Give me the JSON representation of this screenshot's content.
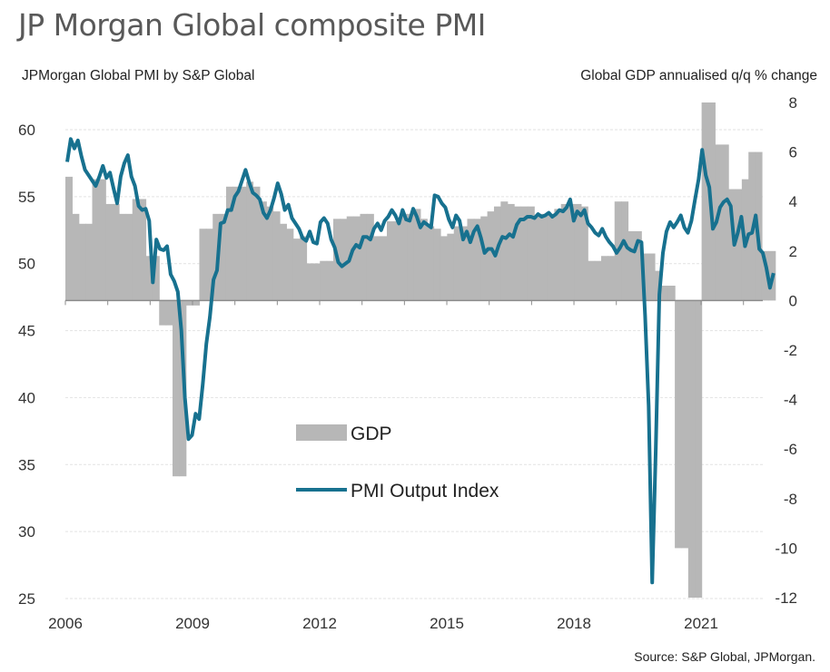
{
  "chart_data": {
    "type": "bar+line",
    "title": "JP Morgan Global composite PMI",
    "left_axis_label": "JPMorgan Global PMI by S&P Global",
    "right_axis_label": "Global GDP annualised q/q % change",
    "source": "Source: S&P Global, JPMorgan.",
    "left_ylim": [
      25,
      60
    ],
    "left_ticks": [
      "60",
      "55",
      "50",
      "45",
      "40",
      "35",
      "30",
      "25"
    ],
    "left_tick_values": [
      60,
      55,
      50,
      45,
      40,
      35,
      30,
      25
    ],
    "right_ylim": [
      -12,
      8
    ],
    "right_ticks": [
      "8",
      "6",
      "4",
      "2",
      "0",
      "-2",
      "-4",
      "-6",
      "-8",
      "-10",
      "-12"
    ],
    "right_tick_values": [
      8,
      6,
      4,
      2,
      0,
      -2,
      -4,
      -6,
      -8,
      -10,
      -12
    ],
    "x_ticks": [
      "2006",
      "2009",
      "2012",
      "2015",
      "2018",
      "2021"
    ],
    "x_tick_values": [
      2006,
      2009,
      2012,
      2015,
      2018,
      2021
    ],
    "xlim": [
      2006,
      2022.75
    ],
    "grid": true,
    "legend": [
      {
        "name": "GDP",
        "type": "bar",
        "color": "#b7b7b7"
      },
      {
        "name": "PMI Output Index",
        "type": "line",
        "color": "#17718f"
      }
    ],
    "legend_position": "center",
    "series": [
      {
        "name": "GDP",
        "axis": "right",
        "type": "bar",
        "frequency": "quarterly",
        "start": 2006.0,
        "values": [
          5.0,
          3.5,
          3.1,
          3.1,
          4.9,
          4.9,
          3.9,
          3.9,
          3.5,
          3.5,
          4.1,
          4.1,
          1.8,
          1.8,
          -1.0,
          -1.0,
          -7.1,
          -7.1,
          -0.2,
          -0.2,
          2.9,
          2.9,
          3.5,
          3.5,
          4.6,
          4.6,
          4.6,
          4.8,
          4.6,
          4.0,
          3.8,
          3.6,
          3.1,
          2.9,
          2.5,
          2.6,
          1.5,
          1.5,
          1.6,
          1.6,
          3.3,
          3.3,
          3.4,
          3.4,
          3.5,
          3.5,
          2.6,
          2.6,
          3.2,
          3.2,
          3.5,
          3.5,
          3.7,
          3.3,
          3.0,
          2.9,
          2.6,
          2.7,
          3.0,
          3.0,
          3.3,
          3.3,
          3.4,
          3.6,
          3.8,
          4.0,
          3.9,
          3.8,
          3.8,
          3.8,
          3.4,
          3.5,
          3.5,
          3.7,
          3.9,
          3.9,
          3.9,
          3.8,
          1.6,
          1.6,
          1.8,
          1.8,
          4.0,
          4.0,
          2.8,
          2.8,
          1.9,
          1.9,
          1.2,
          0.6,
          0.6,
          -10.0,
          -10.0,
          -12.0,
          -12.0,
          8.0,
          8.0,
          6.3,
          6.3,
          4.5,
          4.5,
          4.9,
          6.0,
          6.0,
          2.0,
          2.0
        ],
        "note": "values are stepwise quarterly approximations"
      },
      {
        "name": "PMI Output Index",
        "axis": "left",
        "type": "line",
        "frequency": "monthly",
        "start": 2006.0,
        "values": [
          57.6,
          59.3,
          58.6,
          59.2,
          58.0,
          57.0,
          56.6,
          56.2,
          55.8,
          56.5,
          57.3,
          56.4,
          56.8,
          55.6,
          54.5,
          56.5,
          57.5,
          58.1,
          56.5,
          55.8,
          54.3,
          54.0,
          54.1,
          53.2,
          48.6,
          51.8,
          51.1,
          51.0,
          51.3,
          49.2,
          48.7,
          47.9,
          45.0,
          40.0,
          36.9,
          37.2,
          38.8,
          38.4,
          41.0,
          44.0,
          46.0,
          48.8,
          49.5,
          53.0,
          53.1,
          54.0,
          54.0,
          55.0,
          55.4,
          56.2,
          57.0,
          56.1,
          55.3,
          55.1,
          54.8,
          53.8,
          53.4,
          54.0,
          54.9,
          56.0,
          55.2,
          54.0,
          54.4,
          53.4,
          53.0,
          52.6,
          51.9,
          51.7,
          52.4,
          51.6,
          51.5,
          53.1,
          53.4,
          53.0,
          51.8,
          51.2,
          50.1,
          49.8,
          50.0,
          50.2,
          51.0,
          51.4,
          51.2,
          52.0,
          52.0,
          51.8,
          52.6,
          53.0,
          52.5,
          53.2,
          53.5,
          54.0,
          53.6,
          53.0,
          54.0,
          53.3,
          53.2,
          54.1,
          53.5,
          52.7,
          53.1,
          52.9,
          52.7,
          55.1,
          55.0,
          54.5,
          54.2,
          53.3,
          52.7,
          53.6,
          53.2,
          51.8,
          52.4,
          51.6,
          52.4,
          52.8,
          51.9,
          50.8,
          51.1,
          51.1,
          50.6,
          51.4,
          52.0,
          51.9,
          52.2,
          52.0,
          52.9,
          53.3,
          53.3,
          53.5,
          53.5,
          53.4,
          53.7,
          53.5,
          53.6,
          53.8,
          53.5,
          53.7,
          54.0,
          53.9,
          54.2,
          54.8,
          53.2,
          53.9,
          53.6,
          54.0,
          53.0,
          52.7,
          52.3,
          52.1,
          52.6,
          52.0,
          51.6,
          51.3,
          50.8,
          51.2,
          51.7,
          51.2,
          51.0,
          50.9,
          51.7,
          51.6,
          46.1,
          39.4,
          26.2,
          36.3,
          47.7,
          50.8,
          52.4,
          53.1,
          52.7,
          53.1,
          53.6,
          52.7,
          52.3,
          53.2,
          54.8,
          56.3,
          58.5,
          56.6,
          55.7,
          52.6,
          53.1,
          54.2,
          54.6,
          54.8,
          54.3,
          51.4,
          52.3,
          53.5,
          51.3,
          52.2,
          52.3,
          53.6,
          51.1,
          50.8,
          49.7,
          48.2,
          49.3
        ],
        "note": "monthly values are approximate readings"
      }
    ]
  }
}
